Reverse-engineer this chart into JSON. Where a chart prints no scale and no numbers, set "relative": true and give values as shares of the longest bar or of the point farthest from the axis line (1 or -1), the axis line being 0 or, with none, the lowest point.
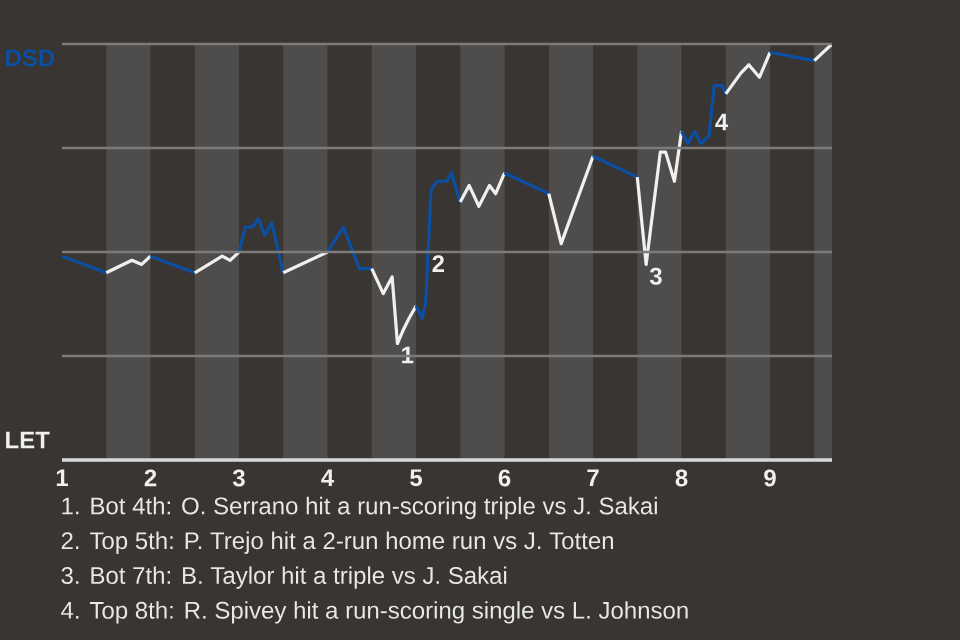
{
  "chart_data": {
    "type": "line",
    "relative": true,
    "xlim": [
      1,
      9.7
    ],
    "xticks": [
      1,
      2,
      3,
      4,
      5,
      6,
      7,
      8,
      9
    ],
    "grid": "y",
    "bands": [
      {
        "axis": "x",
        "from": 1.5,
        "to": 2,
        "color": "#4f4d4b"
      },
      {
        "axis": "x",
        "from": 2.5,
        "to": 3,
        "color": "#4f4d4b"
      },
      {
        "axis": "x",
        "from": 3.5,
        "to": 4,
        "color": "#4f4d4b"
      },
      {
        "axis": "x",
        "from": 4.5,
        "to": 5,
        "color": "#4f4d4b"
      },
      {
        "axis": "x",
        "from": 5.5,
        "to": 6,
        "color": "#4f4d4b"
      },
      {
        "axis": "x",
        "from": 6.5,
        "to": 7,
        "color": "#4f4d4b"
      },
      {
        "axis": "x",
        "from": 7.5,
        "to": 8,
        "color": "#4f4d4b"
      },
      {
        "axis": "x",
        "from": 8.5,
        "to": 9,
        "color": "#4f4d4b"
      },
      {
        "axis": "x",
        "from": 9.5,
        "to": 9.7,
        "color": "#4f4d4b"
      }
    ],
    "series": [
      {
        "color": "#0b4ea2",
        "x": [
          1,
          1.5
        ],
        "values": [
          0.49,
          0.45
        ]
      },
      {
        "color": "#f0f0f0",
        "x": [
          1.5,
          1.79,
          1.9,
          2
        ],
        "values": [
          0.45,
          0.48,
          0.47,
          0.49
        ]
      },
      {
        "color": "#0b4ea2",
        "x": [
          2,
          2.5
        ],
        "values": [
          0.49,
          0.45
        ]
      },
      {
        "color": "#f0f0f0",
        "x": [
          2.5,
          2.81,
          2.9,
          3
        ],
        "values": [
          0.45,
          0.49,
          0.48,
          0.5
        ]
      },
      {
        "color": "#0b4ea2",
        "x": [
          3,
          3.07,
          3.15,
          3.22,
          3.29,
          3.37,
          3.5
        ],
        "values": [
          0.5,
          0.56,
          0.56,
          0.58,
          0.54,
          0.57,
          0.45
        ]
      },
      {
        "color": "#f0f0f0",
        "x": [
          3.5,
          4
        ],
        "values": [
          0.45,
          0.5
        ]
      },
      {
        "color": "#0b4ea2",
        "x": [
          4,
          4.18,
          4.36,
          4.5
        ],
        "values": [
          0.5,
          0.56,
          0.46,
          0.46
        ]
      },
      {
        "color": "#f0f0f0",
        "x": [
          4.5,
          4.63,
          4.73,
          4.79,
          4.85,
          4.92,
          5
        ],
        "values": [
          0.46,
          0.4,
          0.44,
          0.28,
          0.31,
          0.34,
          0.37
        ]
      },
      {
        "color": "#0b4ea2",
        "x": [
          5,
          5.07,
          5.11,
          5.17,
          5.24,
          5.35,
          5.4,
          5.5
        ],
        "values": [
          0.37,
          0.34,
          0.38,
          0.65,
          0.67,
          0.67,
          0.69,
          0.62
        ]
      },
      {
        "color": "#f0f0f0",
        "x": [
          5.5,
          5.6,
          5.71,
          5.83,
          5.9,
          6
        ],
        "values": [
          0.62,
          0.66,
          0.61,
          0.66,
          0.64,
          0.69
        ]
      },
      {
        "color": "#0b4ea2",
        "x": [
          6,
          6.5
        ],
        "values": [
          0.69,
          0.64
        ]
      },
      {
        "color": "#f0f0f0",
        "x": [
          6.5,
          6.64,
          7
        ],
        "values": [
          0.64,
          0.52,
          0.73
        ]
      },
      {
        "color": "#0b4ea2",
        "x": [
          7,
          7.5
        ],
        "values": [
          0.73,
          0.68
        ]
      },
      {
        "color": "#f0f0f0",
        "x": [
          7.5,
          7.6,
          7.76,
          7.82,
          7.92,
          8
        ],
        "values": [
          0.68,
          0.47,
          0.74,
          0.74,
          0.67,
          0.79
        ]
      },
      {
        "color": "#0b4ea2",
        "x": [
          8,
          8.07,
          8.15,
          8.22,
          8.31,
          8.37,
          8.46,
          8.5
        ],
        "values": [
          0.79,
          0.76,
          0.79,
          0.76,
          0.78,
          0.9,
          0.9,
          0.88
        ]
      },
      {
        "color": "#f0f0f0",
        "x": [
          8.5,
          8.67,
          8.76,
          8.88,
          9
        ],
        "values": [
          0.88,
          0.93,
          0.95,
          0.92,
          0.98
        ]
      },
      {
        "color": "#0b4ea2",
        "x": [
          9,
          9.5
        ],
        "values": [
          0.98,
          0.96
        ]
      },
      {
        "color": "#f0f0f0",
        "x": [
          9.5,
          9.7
        ],
        "values": [
          0.96,
          1
        ]
      }
    ],
    "annotations": [
      {
        "text": "1",
        "x": 4.79,
        "y": 0.28
      },
      {
        "text": "2",
        "x": 5.14,
        "y": 0.5
      },
      {
        "text": "3",
        "x": 7.6,
        "y": 0.47
      },
      {
        "text": "4",
        "x": 8.34,
        "y": 0.84
      },
      "DSD",
      "LET",
      "1. Bot 4th: O. Serrano hit a run-scoring triple vs J. Sakai",
      "2. Top 5th: P. Trejo hit a 2-run home run vs J. Totten",
      "3. Bot 7th: B. Taylor hit a triple vs J. Sakai",
      "4. Top 8th: R. Spivey hit a run-scoring single vs L. Johnson"
    ]
  }
}
